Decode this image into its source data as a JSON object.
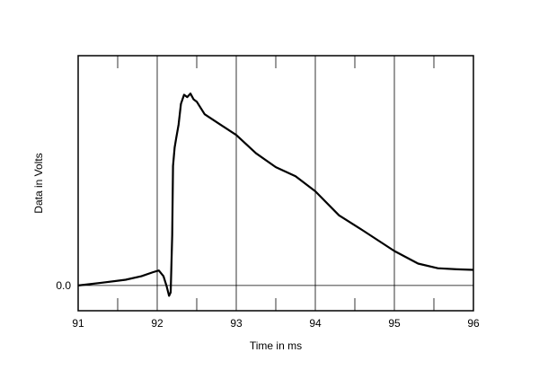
{
  "chart_data": {
    "type": "line",
    "xlabel": "Time in ms",
    "ylabel": "Data in Volts",
    "x_ticks": [
      "91",
      "92",
      "93",
      "94",
      "95",
      "96"
    ],
    "y_tick_labels": [
      "0.0"
    ],
    "xlim": [
      91,
      96
    ],
    "ylim": [
      -0.11,
      1.0
    ],
    "grid": {
      "vertical_major": true,
      "vertical_minor_ticks": true,
      "zero_line": true
    },
    "series": [
      {
        "x": [
          91.0,
          91.3,
          91.6,
          91.8,
          91.95,
          92.02,
          92.08,
          92.12,
          92.15,
          92.17,
          92.19,
          92.2,
          92.22,
          92.24,
          92.27,
          92.3,
          92.34,
          92.38,
          92.42,
          92.46,
          92.5,
          92.6,
          92.8,
          93.0,
          93.25,
          93.5,
          93.75,
          94.0,
          94.3,
          94.6,
          95.0,
          95.3,
          95.55,
          95.8,
          96.0
        ],
        "y": [
          0.0,
          0.012,
          0.025,
          0.04,
          0.058,
          0.065,
          0.04,
          -0.005,
          -0.045,
          -0.03,
          0.22,
          0.52,
          0.6,
          0.64,
          0.7,
          0.79,
          0.83,
          0.82,
          0.835,
          0.81,
          0.8,
          0.745,
          0.7,
          0.655,
          0.575,
          0.515,
          0.475,
          0.41,
          0.305,
          0.24,
          0.15,
          0.095,
          0.075,
          0.07,
          0.068
        ]
      }
    ]
  }
}
